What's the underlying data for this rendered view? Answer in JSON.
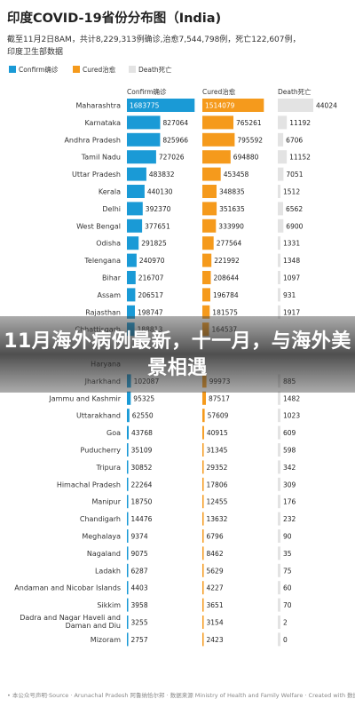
{
  "banner": {
    "text": "11月海外病例最新，十一月，与海外美景相遇"
  },
  "colors": {
    "confirm": "#1a9ad6",
    "cured": "#f59a1c",
    "death": "#e3e3e3"
  },
  "chart_data": {
    "type": "bar",
    "title": "印度COVID-19省份分布图（India)",
    "subtitle_lines": [
      "截至11月2日8AM，共计8,229,313例确诊,治愈7,544,798例，死亡122,607例，",
      "印度卫生部数据"
    ],
    "legend": [
      "Confirm确诊",
      "Cured治愈",
      "Death死亡"
    ],
    "column_headers": [
      "Confirm确诊",
      "Cured治愈",
      "Death死亡"
    ],
    "categories": [
      "Maharashtra",
      "Karnataka",
      "Andhra Pradesh",
      "Tamil Nadu",
      "Uttar Pradesh",
      "Kerala",
      "Delhi",
      "West Bengal",
      "Odisha",
      "Telengana",
      "Bihar",
      "Assam",
      "Rajasthan",
      "Chhattisgarh",
      "",
      "Haryana",
      "Jharkhand",
      "Jammu and Kashmir",
      "Uttarakhand",
      "Goa",
      "Puducherry",
      "Tripura",
      "Himachal Pradesh",
      "Manipur",
      "Chandigarh",
      "Meghalaya",
      "Nagaland",
      "Ladakh",
      "Andaman and Nicobar Islands",
      "Sikkim",
      "Dadra and Nagar Haveli and Daman and Diu",
      "Mizoram"
    ],
    "series": [
      {
        "name": "Confirm确诊",
        "values": [
          1683775,
          827064,
          825966,
          727026,
          483832,
          440130,
          392370,
          377651,
          291825,
          240970,
          216707,
          206517,
          198747,
          188813,
          null,
          null,
          102087,
          95325,
          62550,
          43768,
          35109,
          30852,
          22264,
          18750,
          14476,
          9374,
          9075,
          6287,
          4403,
          3958,
          3255,
          2757
        ]
      },
      {
        "name": "Cured治愈",
        "values": [
          1514079,
          765261,
          795592,
          694880,
          453458,
          348835,
          351635,
          333990,
          277564,
          221992,
          208644,
          196784,
          181575,
          164537,
          null,
          null,
          99973,
          87517,
          57609,
          40915,
          31345,
          29352,
          17806,
          12455,
          13632,
          6796,
          8462,
          5629,
          4227,
          3651,
          3154,
          2423
        ]
      },
      {
        "name": "Death死亡",
        "values": [
          44024,
          11192,
          6706,
          11152,
          7051,
          1512,
          6562,
          6900,
          1331,
          1348,
          1097,
          931,
          1917,
          null,
          null,
          null,
          885,
          1482,
          1023,
          609,
          598,
          342,
          309,
          176,
          232,
          90,
          35,
          75,
          60,
          70,
          2,
          0
        ]
      }
    ],
    "footer": "• 本公众号声明·Source · Arunachal Pradesh 阿鲁纳恰尔邦 · 数据来源 Ministry of Health and Family Welfare · Created with 数据"
  }
}
